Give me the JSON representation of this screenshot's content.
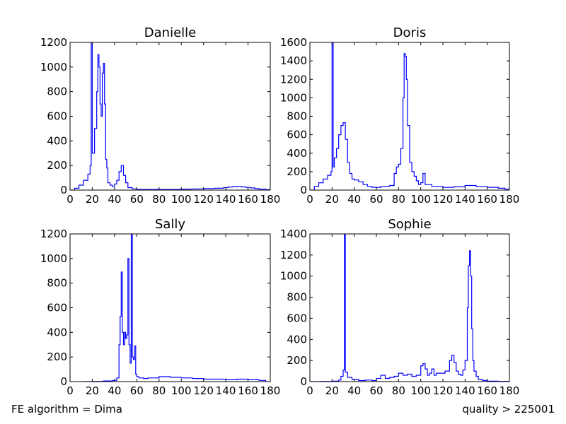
{
  "footer": {
    "left": "FE algorithm = Dima",
    "right": "quality > 225001"
  },
  "style": {
    "line_color": "#0000ff",
    "axes_color": "#000000"
  },
  "chart_data": [
    {
      "type": "line",
      "title": "Danielle",
      "xlim": [
        0,
        180
      ],
      "ylim": [
        0,
        1200
      ],
      "xticks": [
        0,
        20,
        40,
        60,
        80,
        100,
        120,
        140,
        160,
        180
      ],
      "yticks": [
        0,
        200,
        400,
        600,
        800,
        1000,
        1200
      ],
      "grid": false,
      "series": [
        {
          "x": [
            0,
            4,
            8,
            12,
            16,
            18,
            19,
            20,
            22,
            24,
            25,
            26,
            27,
            28,
            29,
            30,
            31,
            32,
            33,
            34,
            36,
            38,
            40,
            42,
            44,
            46,
            48,
            50,
            52,
            56,
            60,
            70,
            80,
            90,
            100,
            110,
            120,
            130,
            138,
            142,
            146,
            150,
            154,
            158,
            162,
            166,
            170,
            176,
            180
          ],
          "y": [
            0,
            15,
            40,
            80,
            130,
            200,
            1300,
            300,
            500,
            800,
            1100,
            1000,
            700,
            600,
            950,
            1030,
            700,
            250,
            180,
            60,
            40,
            30,
            50,
            80,
            150,
            200,
            120,
            60,
            20,
            10,
            5,
            5,
            5,
            5,
            8,
            10,
            12,
            15,
            20,
            25,
            28,
            30,
            26,
            22,
            18,
            12,
            8,
            4,
            0
          ]
        }
      ]
    },
    {
      "type": "line",
      "title": "Doris",
      "xlim": [
        0,
        180
      ],
      "ylim": [
        0,
        1600
      ],
      "xticks": [
        0,
        20,
        40,
        60,
        80,
        100,
        120,
        140,
        160,
        180
      ],
      "yticks": [
        0,
        200,
        400,
        600,
        800,
        1000,
        1200,
        1400,
        1600
      ],
      "grid": false,
      "series": [
        {
          "x": [
            0,
            4,
            8,
            12,
            16,
            19,
            20,
            21,
            22,
            24,
            26,
            28,
            30,
            32,
            34,
            36,
            38,
            40,
            44,
            48,
            52,
            56,
            60,
            64,
            68,
            72,
            76,
            78,
            80,
            82,
            84,
            85,
            86,
            87,
            88,
            90,
            92,
            94,
            96,
            98,
            100,
            102,
            104,
            110,
            120,
            130,
            140,
            150,
            160,
            170,
            176,
            180
          ],
          "y": [
            0,
            40,
            80,
            120,
            160,
            200,
            1600,
            250,
            350,
            450,
            600,
            700,
            730,
            550,
            300,
            180,
            120,
            110,
            90,
            60,
            40,
            30,
            30,
            40,
            40,
            50,
            180,
            250,
            280,
            450,
            1000,
            1480,
            1450,
            1200,
            700,
            300,
            200,
            150,
            100,
            60,
            80,
            180,
            60,
            40,
            30,
            35,
            50,
            40,
            30,
            20,
            10,
            0
          ]
        }
      ]
    },
    {
      "type": "line",
      "title": "Sally",
      "xlim": [
        0,
        180
      ],
      "ylim": [
        0,
        1200
      ],
      "xticks": [
        0,
        20,
        40,
        60,
        80,
        100,
        120,
        140,
        160,
        180
      ],
      "yticks": [
        0,
        200,
        400,
        600,
        800,
        1000,
        1200
      ],
      "grid": false,
      "series": [
        {
          "x": [
            14,
            20,
            30,
            38,
            42,
            44,
            45,
            46,
            47,
            48,
            49,
            50,
            51,
            52,
            53,
            54,
            55,
            56,
            57,
            58,
            59,
            60,
            62,
            66,
            70,
            80,
            90,
            100,
            110,
            120,
            130,
            140,
            150,
            160,
            170,
            176
          ],
          "y": [
            0,
            2,
            5,
            10,
            30,
            300,
            530,
            890,
            400,
            300,
            400,
            350,
            380,
            1000,
            300,
            150,
            1300,
            200,
            180,
            290,
            60,
            40,
            30,
            25,
            30,
            40,
            35,
            30,
            25,
            20,
            20,
            15,
            20,
            15,
            10,
            0
          ]
        }
      ]
    },
    {
      "type": "line",
      "title": "Sophie",
      "xlim": [
        0,
        180
      ],
      "ylim": [
        0,
        1400
      ],
      "xticks": [
        0,
        20,
        40,
        60,
        80,
        100,
        120,
        140,
        160,
        180
      ],
      "yticks": [
        0,
        200,
        400,
        600,
        800,
        1000,
        1200,
        1400
      ],
      "grid": false,
      "series": [
        {
          "x": [
            0,
            10,
            20,
            26,
            28,
            30,
            31,
            32,
            34,
            38,
            44,
            50,
            56,
            60,
            64,
            68,
            72,
            76,
            80,
            84,
            88,
            92,
            96,
            100,
            102,
            104,
            106,
            108,
            110,
            112,
            114,
            118,
            122,
            126,
            128,
            130,
            132,
            134,
            136,
            138,
            140,
            142,
            143,
            144,
            145,
            146,
            147,
            148,
            150,
            152,
            156,
            160,
            170,
            180
          ],
          "y": [
            0,
            2,
            5,
            15,
            50,
            110,
            1500,
            90,
            40,
            20,
            10,
            15,
            10,
            30,
            60,
            30,
            40,
            50,
            80,
            60,
            70,
            50,
            60,
            150,
            170,
            120,
            60,
            80,
            120,
            60,
            80,
            80,
            100,
            200,
            250,
            180,
            100,
            70,
            60,
            110,
            200,
            700,
            1100,
            1240,
            1000,
            500,
            200,
            100,
            50,
            20,
            10,
            5,
            2,
            0
          ]
        }
      ]
    }
  ]
}
